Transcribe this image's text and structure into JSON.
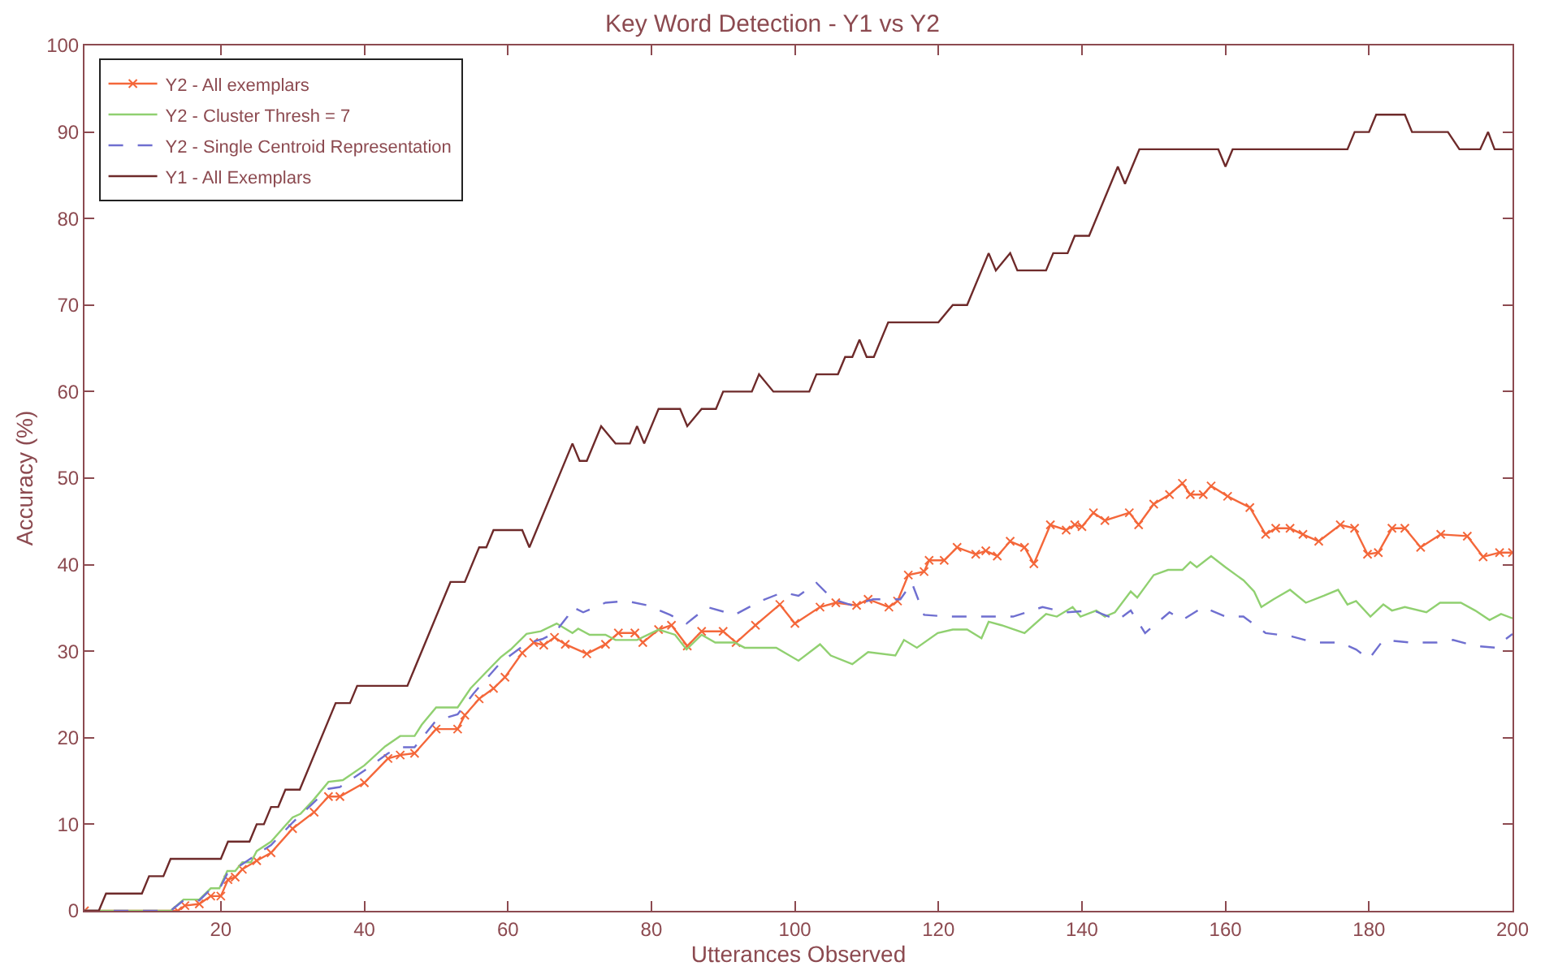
{
  "chart_data": {
    "type": "line",
    "title": "Key Word Detection - Y1 vs Y2",
    "xlabel": "Utterances Observed",
    "ylabel": "Accuracy (%)",
    "xlim": [
      1,
      200
    ],
    "xticks": [
      20,
      40,
      60,
      80,
      100,
      120,
      140,
      160,
      180,
      200
    ],
    "ylim": [
      0,
      100
    ],
    "yticks": [
      0,
      10,
      20,
      30,
      40,
      50,
      60,
      70,
      80,
      90,
      100
    ],
    "legend": "top left",
    "series": [
      {
        "name": "Y2 - All exemplars",
        "color": "#f4673a",
        "marker": "cross",
        "line_style": "solid",
        "x": [
          1,
          14,
          15,
          17,
          18.6,
          20,
          21,
          22,
          23,
          25,
          27,
          30,
          33,
          35,
          36.6,
          40,
          43.3,
          45,
          47,
          50,
          53,
          54,
          56,
          58,
          59.6,
          62,
          63.6,
          65,
          66.5,
          68,
          71,
          73.6,
          75.4,
          77.7,
          78.8,
          81,
          82.8,
          85,
          87,
          90,
          91.8,
          94.5,
          97.9,
          100,
          103.5,
          105.7,
          108.6,
          110.2,
          113.1,
          114.3,
          115.8,
          118,
          118.7,
          120.8,
          122.6,
          125.2,
          126.6,
          128.2,
          130,
          132,
          133.3,
          135.6,
          137.8,
          139,
          140,
          141.6,
          143.2,
          146.6,
          147.9,
          150,
          152.2,
          154,
          155.1,
          156.9,
          158,
          160.3,
          163.4,
          165.6,
          167,
          169,
          170.8,
          173,
          176,
          178,
          179.8,
          181.3,
          183.2,
          185,
          187.2,
          190,
          193.7,
          195.9,
          198.2,
          200
        ],
        "values": [
          0,
          0,
          0.6,
          0.8,
          1.7,
          1.7,
          3.6,
          3.9,
          4.8,
          5.8,
          6.7,
          9.5,
          11.4,
          13.2,
          13.2,
          14.8,
          17.6,
          18,
          18.2,
          21,
          21,
          22.6,
          24.5,
          25.7,
          27,
          29.8,
          31,
          30.7,
          31.6,
          30.8,
          29.7,
          30.8,
          32.1,
          32.1,
          31,
          32.5,
          33,
          30.6,
          32.3,
          32.3,
          31,
          33,
          35.4,
          33.2,
          35.1,
          35.6,
          35.3,
          36,
          35.1,
          35.8,
          38.8,
          39.2,
          40.5,
          40.5,
          42,
          41.2,
          41.6,
          41,
          42.7,
          42,
          40.1,
          44.6,
          44,
          44.6,
          44.4,
          46,
          45.1,
          46,
          44.6,
          47,
          48.1,
          49.4,
          48.1,
          48.1,
          49.1,
          47.9,
          46.6,
          43.5,
          44.2,
          44.2,
          43.5,
          42.7,
          44.6,
          44.2,
          41.2,
          41.4,
          44.2,
          44.2,
          42,
          43.5,
          43.3,
          40.9,
          41.4,
          41.4
        ]
      },
      {
        "name": "Y2 - Cluster Thresh = 7",
        "color": "#90d070",
        "marker": "none",
        "line_style": "solid",
        "x": [
          1,
          13,
          14.8,
          17,
          18.6,
          19.8,
          20.9,
          22,
          23,
          24.2,
          25,
          27,
          30,
          31.1,
          32.8,
          35,
          37,
          40,
          42.9,
          45,
          47,
          48,
          50,
          53,
          54.8,
          57,
          59,
          60.4,
          62.6,
          64.6,
          66.8,
          69,
          69.8,
          71.4,
          73.6,
          75,
          78,
          81,
          83.3,
          84.9,
          87,
          88.9,
          91.6,
          93,
          97.4,
          100.5,
          103.5,
          105,
          108,
          110.2,
          114,
          115.2,
          117,
          119.9,
          122,
          124,
          126,
          127,
          128.8,
          132,
          135,
          136.5,
          138.7,
          139.8,
          142,
          143.2,
          144.6,
          146.8,
          147.7,
          150,
          152,
          154,
          155.1,
          156,
          158,
          160,
          162.5,
          164,
          165,
          166.7,
          169,
          171.2,
          173.7,
          175.7,
          177,
          178.2,
          180.2,
          182,
          183.2,
          185,
          188,
          189.9,
          192.8,
          194.8,
          196.8,
          198.4,
          200
        ],
        "values": [
          0,
          0,
          1.3,
          1.3,
          2.6,
          2.6,
          4.6,
          4.6,
          5.6,
          5.6,
          6.9,
          8,
          10.8,
          11.2,
          12.7,
          14.9,
          15.1,
          16.8,
          19,
          20.2,
          20.2,
          21.5,
          23.5,
          23.5,
          25.7,
          27.6,
          29.3,
          30.2,
          32,
          32.3,
          33.2,
          32.1,
          32.6,
          31.9,
          31.9,
          31.3,
          31.3,
          32.5,
          31.9,
          30.2,
          31.9,
          31,
          31,
          30.4,
          30.4,
          28.9,
          30.8,
          29.5,
          28.5,
          29.9,
          29.5,
          31.3,
          30.4,
          32.1,
          32.5,
          32.5,
          31.5,
          33.4,
          33,
          32.1,
          34.3,
          34,
          35.1,
          34,
          34.7,
          34,
          34.5,
          36.9,
          36.2,
          38.8,
          39.4,
          39.4,
          40.3,
          39.7,
          41,
          39.7,
          38.2,
          36.9,
          35.1,
          36,
          37.1,
          35.6,
          36.4,
          37.1,
          35.4,
          35.8,
          34,
          35.4,
          34.7,
          35.1,
          34.5,
          35.6,
          35.6,
          34.7,
          33.6,
          34.3,
          33.8
        ]
      },
      {
        "name": "Y2 - Single Centroid Representation",
        "color": "#6f6fd0",
        "marker": "none",
        "line_style": "dashed",
        "x": [
          1,
          13,
          14.8,
          17,
          18.6,
          19.8,
          20.9,
          23,
          25,
          27,
          30,
          32.8,
          35,
          36.6,
          40,
          43.3,
          45,
          47,
          50,
          53,
          55.2,
          59,
          62.6,
          64.8,
          66.5,
          68.3,
          69,
          70.5,
          73.6,
          76.5,
          79.5,
          82.6,
          84.9,
          87.8,
          91.6,
          95.2,
          98.3,
          100.5,
          103,
          105.3,
          108,
          110.9,
          114.7,
          116.3,
          118,
          121.4,
          125.9,
          130.4,
          134.5,
          137.8,
          141.6,
          145,
          146.8,
          148.8,
          152.2,
          154,
          156.9,
          160,
          162.5,
          165.6,
          169.3,
          172.4,
          176,
          178.2,
          180,
          182,
          185.8,
          189.4,
          191.7,
          194.8,
          197.7,
          198.9,
          200
        ],
        "values": [
          0,
          0,
          1.2,
          1.2,
          2.5,
          2.5,
          4.3,
          5.4,
          6.5,
          7.6,
          10.2,
          12.4,
          14.1,
          14.3,
          16.2,
          18.2,
          18.9,
          18.9,
          22,
          22.7,
          25.1,
          28.7,
          30.9,
          31.4,
          32.1,
          34,
          35.1,
          34.5,
          35.6,
          35.8,
          35.3,
          34.2,
          33.2,
          35.1,
          34.2,
          35.8,
          36.8,
          36.4,
          37.9,
          36,
          35.3,
          36,
          36,
          37.9,
          34.2,
          34,
          34,
          34,
          35.1,
          34.5,
          34.7,
          33.6,
          34.7,
          32.1,
          34.5,
          33.6,
          35.1,
          34,
          34,
          32.1,
          31.7,
          31,
          31,
          30.2,
          29.1,
          31.3,
          31,
          31,
          31.3,
          30.6,
          30.4,
          31.3,
          32
        ]
      },
      {
        "name": "Y1 - All Exemplars",
        "color": "#6e2a2a",
        "marker": "none",
        "line_style": "solid",
        "x": [
          1,
          3,
          4,
          9,
          10,
          12,
          13,
          20,
          21,
          24,
          25,
          26,
          27,
          28,
          29,
          31,
          36,
          38,
          39,
          46,
          52,
          54,
          56,
          57,
          58,
          62,
          63,
          69,
          70,
          71,
          73,
          75,
          77,
          78,
          79,
          81,
          84,
          85,
          87,
          89,
          90,
          94,
          95,
          97,
          102,
          103,
          106,
          107,
          108,
          109,
          110,
          111,
          113,
          120,
          122,
          124,
          127,
          128,
          130,
          131,
          135,
          136,
          138,
          139,
          141,
          145,
          146,
          148,
          159,
          160,
          161,
          177,
          178,
          180,
          181,
          185,
          186,
          191,
          192.6,
          195.5,
          196.6,
          197.5,
          200
        ],
        "values": [
          0,
          0,
          2,
          2,
          4,
          4,
          6,
          6,
          8,
          8,
          10,
          10,
          12,
          12,
          14,
          14,
          24,
          24,
          26,
          26,
          38,
          38,
          42,
          42,
          44,
          44,
          42,
          54,
          52,
          52,
          56,
          54,
          54,
          56,
          54,
          58,
          58,
          56,
          58,
          58,
          60,
          60,
          62,
          60,
          60,
          62,
          62,
          64,
          64,
          66,
          64,
          64,
          68,
          68,
          70,
          70,
          76,
          74,
          76,
          74,
          74,
          76,
          76,
          78,
          78,
          86,
          84,
          88,
          88,
          86,
          88,
          88,
          90,
          90,
          92,
          92,
          90,
          90,
          88,
          88,
          90,
          88,
          88
        ]
      }
    ]
  }
}
